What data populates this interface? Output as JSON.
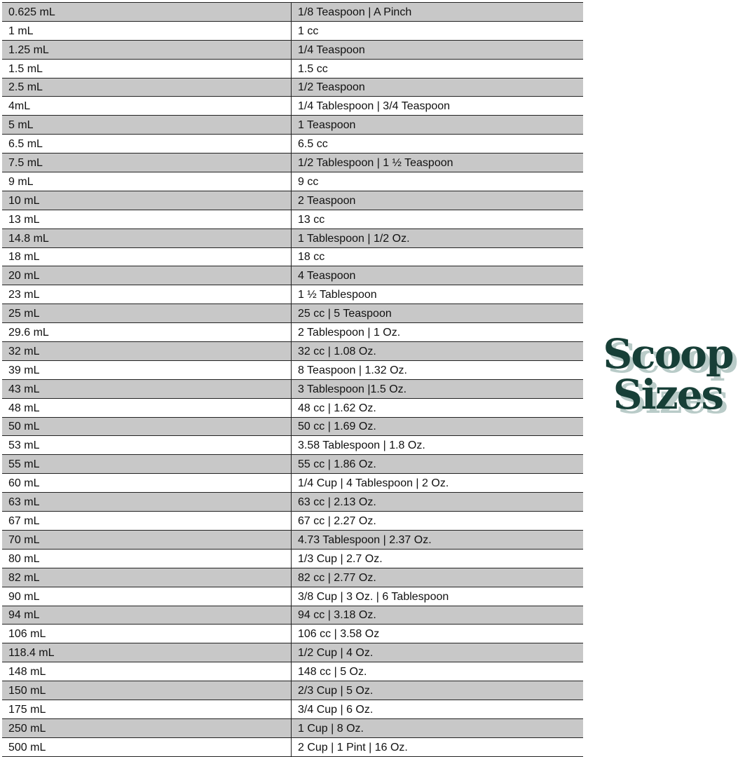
{
  "logo": {
    "line1": "Scoop",
    "line2": "Sizes",
    "color": "#173f37",
    "shadow_color": "#b9cbc8"
  },
  "table": {
    "stripe_color": "#c8c8c8",
    "rows": [
      [
        "0.625 mL",
        "1/8 Teaspoon | A Pinch"
      ],
      [
        "1 mL",
        "1 cc"
      ],
      [
        "1.25 mL",
        "1/4 Teaspoon"
      ],
      [
        "1.5 mL",
        "1.5 cc"
      ],
      [
        "2.5 mL",
        "1/2 Teaspoon"
      ],
      [
        "4mL",
        "1/4 Tablespoon | 3/4 Teaspoon"
      ],
      [
        "5 mL",
        "1 Teaspoon"
      ],
      [
        "6.5 mL",
        "6.5 cc"
      ],
      [
        "7.5 mL",
        "1/2 Tablespoon | 1 ½ Teaspoon"
      ],
      [
        "9 mL",
        "9 cc"
      ],
      [
        "10 mL",
        "2 Teaspoon"
      ],
      [
        "13 mL",
        "13 cc"
      ],
      [
        "14.8 mL",
        "1 Tablespoon | 1/2 Oz."
      ],
      [
        "18 mL",
        "18 cc"
      ],
      [
        "20 mL",
        "4 Teaspoon"
      ],
      [
        "23 mL",
        "1 ½ Tablespoon"
      ],
      [
        "25 mL",
        "25 cc | 5 Teaspoon"
      ],
      [
        "29.6 mL",
        "2 Tablespoon | 1 Oz."
      ],
      [
        "32 mL",
        "32 cc | 1.08 Oz."
      ],
      [
        "39 mL",
        "8 Teaspoon | 1.32 Oz."
      ],
      [
        "43 mL",
        "3 Tablespoon |1.5 Oz."
      ],
      [
        "48 mL",
        "48 cc | 1.62 Oz."
      ],
      [
        "50 mL",
        "50 cc | 1.69 Oz."
      ],
      [
        "53 mL",
        "3.58 Tablespoon | 1.8 Oz."
      ],
      [
        "55 mL",
        "55 cc | 1.86 Oz."
      ],
      [
        "60 mL",
        "1/4 Cup | 4 Tablespoon | 2 Oz."
      ],
      [
        "63 mL",
        "63 cc | 2.13 Oz."
      ],
      [
        "67 mL",
        "67 cc | 2.27 Oz."
      ],
      [
        "70 mL",
        "4.73 Tablespoon | 2.37 Oz."
      ],
      [
        "80 mL",
        "1/3 Cup | 2.7 Oz."
      ],
      [
        "82 mL",
        "82 cc | 2.77 Oz."
      ],
      [
        "90 mL",
        "3/8 Cup | 3 Oz. | 6 Tablespoon"
      ],
      [
        "94 mL",
        "94 cc | 3.18 Oz."
      ],
      [
        "106 mL",
        "106 cc | 3.58 Oz"
      ],
      [
        "118.4 mL",
        "1/2 Cup | 4 Oz."
      ],
      [
        "148 mL",
        "148 cc | 5 Oz."
      ],
      [
        "150 mL",
        "2/3 Cup | 5 Oz."
      ],
      [
        "175 mL",
        "3/4 Cup | 6 Oz."
      ],
      [
        "250 mL",
        "1 Cup | 8 Oz."
      ],
      [
        "500 mL",
        "2 Cup | 1 Pint | 16 Oz."
      ]
    ]
  }
}
